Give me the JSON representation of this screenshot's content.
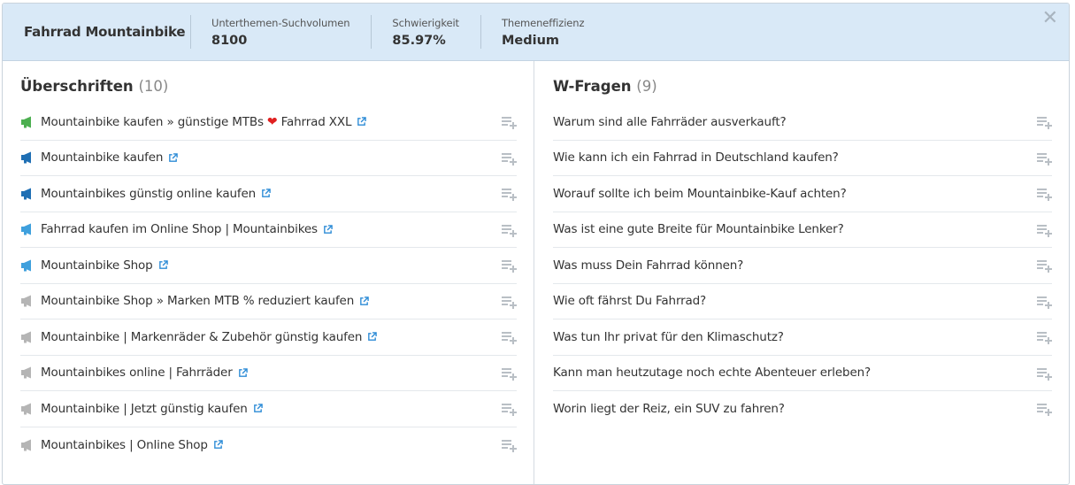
{
  "header": {
    "topic": "Fahrrad Mountainbike",
    "metrics": [
      {
        "label": "Unterthemen-Suchvolumen",
        "value": "8100"
      },
      {
        "label": "Schwierigkeit",
        "value": "85.97%"
      },
      {
        "label": "Themeneffizienz",
        "value": "Medium"
      }
    ],
    "close_glyph": "✕"
  },
  "headings": {
    "title": "Überschriften",
    "count": "(10)",
    "items": [
      {
        "text_before": "Mountainbike kaufen » günstige MTBs",
        "heart": "❤",
        "text_after": "Fahrrad XXL",
        "icon_color": "#4caf50"
      },
      {
        "text_before": "Mountainbike kaufen",
        "icon_color": "#1f6fb4"
      },
      {
        "text_before": "Mountainbikes günstig online kaufen",
        "icon_color": "#1f6fb4"
      },
      {
        "text_before": "Fahrrad kaufen im Online Shop | Mountainbikes",
        "icon_color": "#3fa0dd"
      },
      {
        "text_before": "Mountainbike Shop",
        "icon_color": "#3fa0dd"
      },
      {
        "text_before": "Mountainbike Shop » Marken MTB % reduziert kaufen",
        "icon_color": "#b5b5b5"
      },
      {
        "text_before": "Mountainbike | Markenräder & Zubehör günstig kaufen",
        "icon_color": "#b5b5b5"
      },
      {
        "text_before": "Mountainbikes online | Fahrräder",
        "icon_color": "#b5b5b5"
      },
      {
        "text_before": "Mountainbike | Jetzt günstig kaufen",
        "icon_color": "#b5b5b5"
      },
      {
        "text_before": "Mountainbikes | Online Shop",
        "icon_color": "#b5b5b5"
      }
    ]
  },
  "questions": {
    "title": "W-Fragen",
    "count": "(9)",
    "items": [
      "Warum sind alle Fahrräder ausverkauft?",
      "Wie kann ich ein Fahrrad in Deutschland kaufen?",
      "Worauf sollte ich beim Mountainbike-Kauf achten?",
      "Was ist eine gute Breite für Mountainbike Lenker?",
      "Was muss Dein Fahrrad können?",
      "Wie oft fährst Du Fahrrad?",
      "Was tun Ihr privat für den Klimaschutz?",
      "Kann man heutzutage noch echte Abenteuer erleben?",
      "Worin liegt der Reiz, ein SUV zu fahren?"
    ]
  },
  "colors": {
    "header_bg": "#d9e9f7",
    "link_icon": "#2c8bd6",
    "add_icon": "#b9bfc5"
  },
  "icons": {
    "row_icon": "megaphone-icon",
    "link_icon": "external-link-icon",
    "add_icon": "add-to-list-icon",
    "close_icon": "close-icon"
  }
}
